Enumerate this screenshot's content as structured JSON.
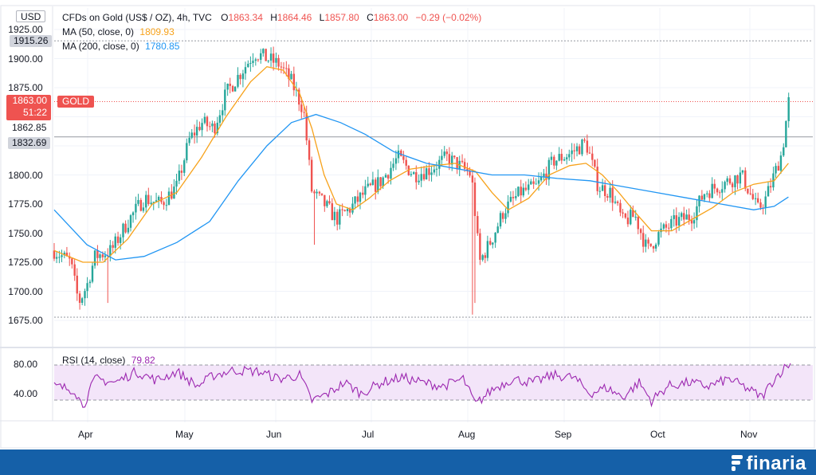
{
  "currency_label": "USD",
  "legend": {
    "title": "CFDs on Gold (US$ / OZ), 4h, TVC",
    "o_label": "O",
    "o_value": "1863.34",
    "h_label": "H",
    "h_value": "1864.46",
    "l_label": "L",
    "l_value": "1857.80",
    "c_label": "C",
    "c_value": "1863.00",
    "change": "−0.29 (−0.02%)",
    "ma50_label": "MA (50, close, 0)",
    "ma50_value": "1809.93",
    "ma200_label": "MA (200, close, 0)",
    "ma200_value": "1780.85",
    "rsi_label": "RSI (14, close)",
    "rsi_value": "79.82"
  },
  "price_tags": {
    "high": "1915.26",
    "last_price": "1863.00",
    "last_time": "51:22",
    "symbol": "GOLD",
    "tag_a": "1862.85",
    "tag_b": "1832.69"
  },
  "brand": "finaria",
  "colors": {
    "up": "#26a69a",
    "down": "#ef5350",
    "ma50": "#f7a21b",
    "ma200": "#2196f3",
    "rsi": "#9c27b0",
    "rsi_band": "#f3e5f9",
    "last": "#ef5350",
    "footer": "#1560a8"
  },
  "chart_data": [
    {
      "type": "candlestick",
      "title": "CFDs on Gold (US$ / OZ), 4h, TVC",
      "ylabel": "USD",
      "ylim": [
        1675,
        1925
      ],
      "x": [
        "Apr",
        "May",
        "Jun",
        "Jul",
        "Aug",
        "Sep",
        "Oct",
        "Nov"
      ],
      "yticks": [
        "1925.00",
        "1900.00",
        "1875.00",
        "1850.00",
        "1825.00",
        "1800.00",
        "1775.00",
        "1750.00",
        "1725.00",
        "1700.00",
        "1675.00"
      ],
      "close_path": [
        [
          0,
          1735
        ],
        [
          8,
          1725
        ],
        [
          12,
          1690
        ],
        [
          16,
          1705
        ],
        [
          20,
          1730
        ],
        [
          28,
          1735
        ],
        [
          36,
          1760
        ],
        [
          44,
          1780
        ],
        [
          52,
          1775
        ],
        [
          60,
          1790
        ],
        [
          66,
          1830
        ],
        [
          72,
          1845
        ],
        [
          78,
          1840
        ],
        [
          84,
          1870
        ],
        [
          90,
          1885
        ],
        [
          98,
          1905
        ],
        [
          104,
          1900
        ],
        [
          110,
          1895
        ],
        [
          116,
          1880
        ],
        [
          122,
          1855
        ],
        [
          126,
          1785
        ],
        [
          132,
          1775
        ],
        [
          138,
          1762
        ],
        [
          144,
          1770
        ],
        [
          152,
          1785
        ],
        [
          160,
          1795
        ],
        [
          168,
          1815
        ],
        [
          176,
          1800
        ],
        [
          184,
          1805
        ],
        [
          192,
          1815
        ],
        [
          198,
          1808
        ],
        [
          204,
          1800
        ],
        [
          208,
          1725
        ],
        [
          214,
          1745
        ],
        [
          220,
          1770
        ],
        [
          228,
          1785
        ],
        [
          236,
          1790
        ],
        [
          244,
          1812
        ],
        [
          252,
          1818
        ],
        [
          260,
          1828
        ],
        [
          266,
          1790
        ],
        [
          272,
          1785
        ],
        [
          278,
          1760
        ],
        [
          284,
          1765
        ],
        [
          290,
          1735
        ],
        [
          296,
          1750
        ],
        [
          304,
          1760
        ],
        [
          312,
          1765
        ],
        [
          318,
          1785
        ],
        [
          324,
          1790
        ],
        [
          330,
          1795
        ],
        [
          336,
          1800
        ],
        [
          340,
          1785
        ],
        [
          344,
          1770
        ],
        [
          348,
          1780
        ],
        [
          352,
          1800
        ],
        [
          356,
          1820
        ],
        [
          359,
          1863
        ]
      ],
      "series": [
        {
          "name": "MA (50, close, 0)",
          "last": 1809.93,
          "path": [
            [
              0,
              1735
            ],
            [
              14,
              1725
            ],
            [
              24,
              1725
            ],
            [
              36,
              1745
            ],
            [
              48,
              1775
            ],
            [
              60,
              1785
            ],
            [
              72,
              1815
            ],
            [
              84,
              1850
            ],
            [
              96,
              1880
            ],
            [
              104,
              1893
            ],
            [
              112,
              1890
            ],
            [
              120,
              1870
            ],
            [
              126,
              1840
            ],
            [
              132,
              1800
            ],
            [
              138,
              1775
            ],
            [
              146,
              1770
            ],
            [
              154,
              1780
            ],
            [
              164,
              1795
            ],
            [
              174,
              1805
            ],
            [
              186,
              1808
            ],
            [
              196,
              1810
            ],
            [
              206,
              1803
            ],
            [
              214,
              1785
            ],
            [
              222,
              1770
            ],
            [
              232,
              1780
            ],
            [
              242,
              1800
            ],
            [
              252,
              1808
            ],
            [
              260,
              1810
            ],
            [
              268,
              1800
            ],
            [
              276,
              1785
            ],
            [
              284,
              1768
            ],
            [
              292,
              1752
            ],
            [
              302,
              1752
            ],
            [
              312,
              1762
            ],
            [
              322,
              1772
            ],
            [
              332,
              1785
            ],
            [
              342,
              1792
            ],
            [
              352,
              1795
            ],
            [
              359,
              1810
            ]
          ]
        },
        {
          "name": "MA (200, close, 0)",
          "last": 1780.85,
          "path": [
            [
              0,
              1770
            ],
            [
              16,
              1740
            ],
            [
              30,
              1727
            ],
            [
              44,
              1730
            ],
            [
              60,
              1742
            ],
            [
              76,
              1760
            ],
            [
              90,
              1795
            ],
            [
              104,
              1825
            ],
            [
              116,
              1845
            ],
            [
              128,
              1852
            ],
            [
              140,
              1845
            ],
            [
              152,
              1835
            ],
            [
              166,
              1820
            ],
            [
              182,
              1810
            ],
            [
              198,
              1805
            ],
            [
              214,
              1800
            ],
            [
              230,
              1800
            ],
            [
              246,
              1797
            ],
            [
              262,
              1795
            ],
            [
              278,
              1790
            ],
            [
              294,
              1785
            ],
            [
              310,
              1780
            ],
            [
              326,
              1775
            ],
            [
              342,
              1770
            ],
            [
              352,
              1773
            ],
            [
              359,
              1781
            ]
          ]
        }
      ]
    },
    {
      "type": "line",
      "title": "RSI (14, close)",
      "ylim": [
        20,
        90
      ],
      "yticks": [
        "80.00",
        "40.00"
      ],
      "bands": [
        30,
        70
      ],
      "series": [
        {
          "name": "RSI (14, close)",
          "last": 79.82,
          "path": [
            [
              0,
              50
            ],
            [
              10,
              45
            ],
            [
              14,
              22
            ],
            [
              20,
              60
            ],
            [
              30,
              55
            ],
            [
              40,
              70
            ],
            [
              50,
              58
            ],
            [
              60,
              70
            ],
            [
              70,
              50
            ],
            [
              78,
              65
            ],
            [
              88,
              72
            ],
            [
              100,
              70
            ],
            [
              110,
              60
            ],
            [
              120,
              65
            ],
            [
              126,
              30
            ],
            [
              134,
              40
            ],
            [
              142,
              55
            ],
            [
              150,
              40
            ],
            [
              160,
              55
            ],
            [
              170,
              62
            ],
            [
              180,
              55
            ],
            [
              190,
              50
            ],
            [
              200,
              60
            ],
            [
              206,
              25
            ],
            [
              214,
              45
            ],
            [
              224,
              60
            ],
            [
              234,
              55
            ],
            [
              244,
              65
            ],
            [
              254,
              62
            ],
            [
              262,
              40
            ],
            [
              270,
              48
            ],
            [
              278,
              35
            ],
            [
              286,
              55
            ],
            [
              292,
              30
            ],
            [
              300,
              50
            ],
            [
              310,
              55
            ],
            [
              320,
              50
            ],
            [
              330,
              60
            ],
            [
              340,
              45
            ],
            [
              346,
              35
            ],
            [
              352,
              60
            ],
            [
              356,
              72
            ],
            [
              359,
              80
            ]
          ]
        }
      ]
    }
  ]
}
